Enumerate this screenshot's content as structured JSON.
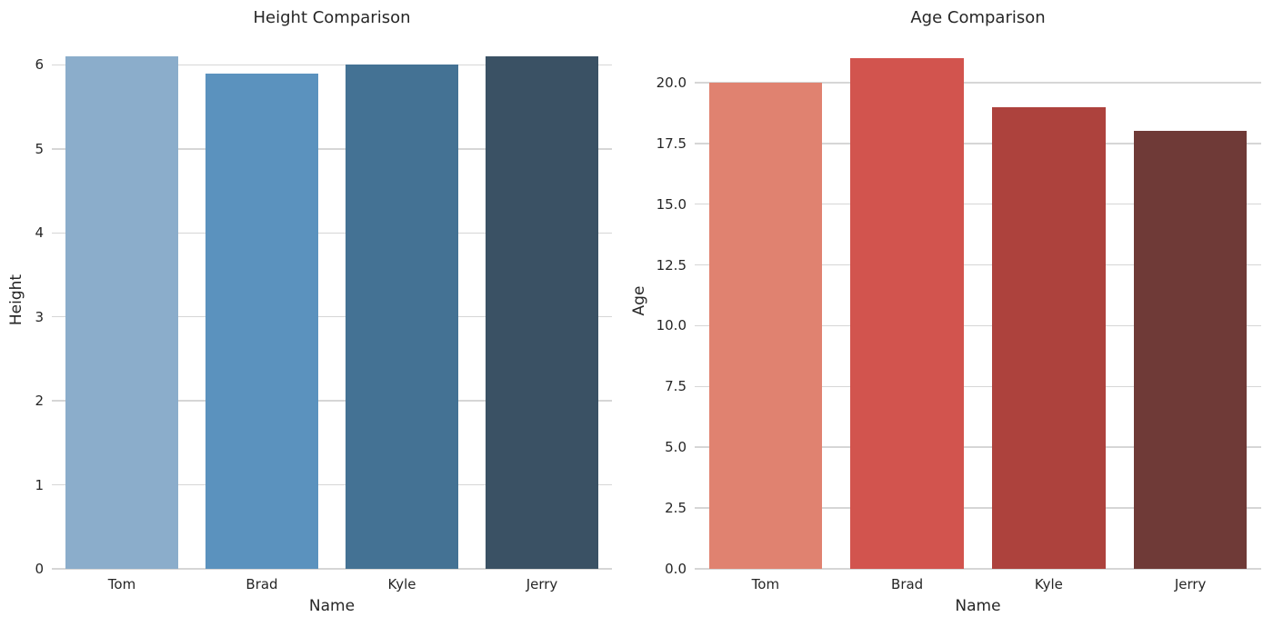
{
  "chart_data": [
    {
      "type": "bar",
      "title": "Height Comparison",
      "xlabel": "Name",
      "ylabel": "Height",
      "categories": [
        "Tom",
        "Brad",
        "Kyle",
        "Jerry"
      ],
      "values": [
        6.1,
        5.9,
        6.0,
        6.1
      ],
      "bar_colors": [
        "#8badcb",
        "#5b92be",
        "#447294",
        "#3a5164"
      ],
      "yticks": [
        0,
        1,
        2,
        3,
        4,
        5,
        6
      ],
      "ytick_labels": [
        "0",
        "1",
        "2",
        "3",
        "4",
        "5",
        "6"
      ],
      "ylim": [
        0,
        6.405
      ],
      "grid": true,
      "legend": "none"
    },
    {
      "type": "bar",
      "title": "Age Comparison",
      "xlabel": "Name",
      "ylabel": "Age",
      "categories": [
        "Tom",
        "Brad",
        "Kyle",
        "Jerry"
      ],
      "values": [
        20,
        21,
        19,
        18
      ],
      "bar_colors": [
        "#e08270",
        "#d2544e",
        "#ad423d",
        "#6f3a37"
      ],
      "yticks": [
        0,
        2.5,
        5,
        7.5,
        10,
        12.5,
        15,
        17.5,
        20
      ],
      "ytick_labels": [
        "0.0",
        "2.5",
        "5.0",
        "7.5",
        "10.0",
        "12.5",
        "15.0",
        "17.5",
        "20.0"
      ],
      "ylim": [
        0,
        22.05
      ],
      "grid": true,
      "legend": "none"
    }
  ],
  "style": {
    "grid_color": "#d6d6d6",
    "text_color": "#262626",
    "background_color": "#ffffff"
  }
}
